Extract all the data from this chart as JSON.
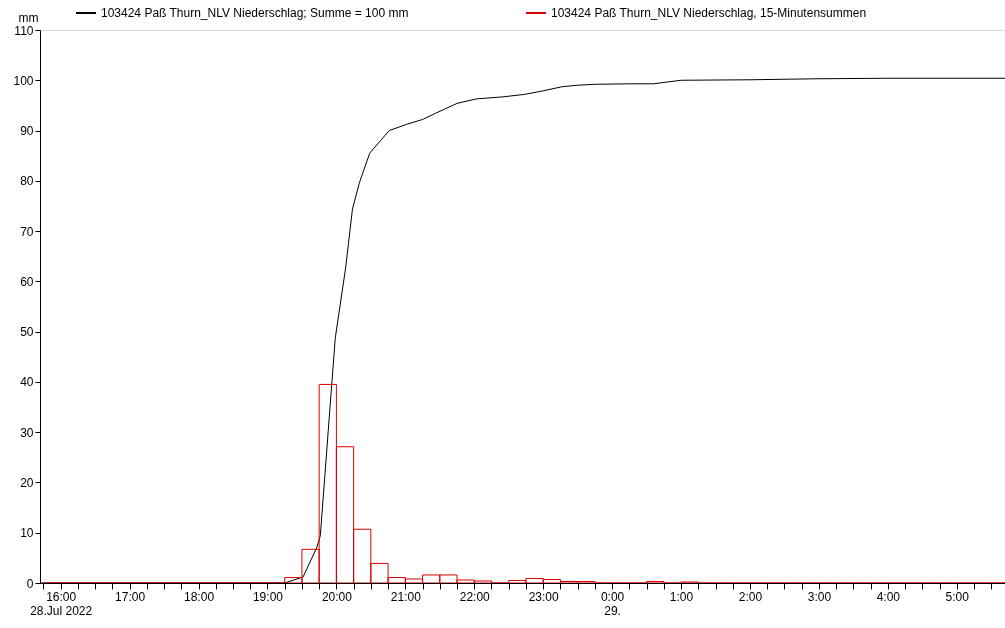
{
  "chart_data": {
    "type": "line",
    "ylabel": "mm",
    "legend": "top",
    "xlim": [
      "2022-07-28T15:42",
      "2022-07-29T05:42"
    ],
    "ylim": [
      0,
      110
    ],
    "yticks": [
      0,
      10,
      20,
      30,
      40,
      50,
      60,
      70,
      80,
      90,
      100,
      110
    ],
    "grid": false,
    "xticks": [
      {
        "value": "2022-07-28T15:45",
        "label": null
      },
      {
        "value": "2022-07-28T16:00",
        "label": "16:00\n28.Jul 2022"
      },
      {
        "value": "2022-07-28T16:15",
        "label": null
      },
      {
        "value": "2022-07-28T16:30",
        "label": null
      },
      {
        "value": "2022-07-28T16:45",
        "label": null
      },
      {
        "value": "2022-07-28T17:00",
        "label": "17:00"
      },
      {
        "value": "2022-07-28T17:15",
        "label": null
      },
      {
        "value": "2022-07-28T17:30",
        "label": null
      },
      {
        "value": "2022-07-28T17:45",
        "label": null
      },
      {
        "value": "2022-07-28T18:00",
        "label": "18:00"
      },
      {
        "value": "2022-07-28T18:15",
        "label": null
      },
      {
        "value": "2022-07-28T18:30",
        "label": null
      },
      {
        "value": "2022-07-28T18:45",
        "label": null
      },
      {
        "value": "2022-07-28T19:00",
        "label": "19:00"
      },
      {
        "value": "2022-07-28T19:15",
        "label": null
      },
      {
        "value": "2022-07-28T19:30",
        "label": null
      },
      {
        "value": "2022-07-28T19:45",
        "label": null
      },
      {
        "value": "2022-07-28T20:00",
        "label": "20:00"
      },
      {
        "value": "2022-07-28T20:15",
        "label": null
      },
      {
        "value": "2022-07-28T20:30",
        "label": null
      },
      {
        "value": "2022-07-28T20:45",
        "label": null
      },
      {
        "value": "2022-07-28T21:00",
        "label": "21:00"
      },
      {
        "value": "2022-07-28T21:15",
        "label": null
      },
      {
        "value": "2022-07-28T21:30",
        "label": null
      },
      {
        "value": "2022-07-28T21:45",
        "label": null
      },
      {
        "value": "2022-07-28T22:00",
        "label": "22:00"
      },
      {
        "value": "2022-07-28T22:15",
        "label": null
      },
      {
        "value": "2022-07-28T22:30",
        "label": null
      },
      {
        "value": "2022-07-28T22:45",
        "label": null
      },
      {
        "value": "2022-07-28T23:00",
        "label": "23:00"
      },
      {
        "value": "2022-07-28T23:15",
        "label": null
      },
      {
        "value": "2022-07-28T23:30",
        "label": null
      },
      {
        "value": "2022-07-28T23:45",
        "label": null
      },
      {
        "value": "2022-07-29T00:00",
        "label": "0:00\n29."
      },
      {
        "value": "2022-07-29T00:15",
        "label": null
      },
      {
        "value": "2022-07-29T00:30",
        "label": null
      },
      {
        "value": "2022-07-29T00:45",
        "label": null
      },
      {
        "value": "2022-07-29T01:00",
        "label": "1:00"
      },
      {
        "value": "2022-07-29T01:15",
        "label": null
      },
      {
        "value": "2022-07-29T01:30",
        "label": null
      },
      {
        "value": "2022-07-29T01:45",
        "label": null
      },
      {
        "value": "2022-07-29T02:00",
        "label": "2:00"
      },
      {
        "value": "2022-07-29T02:15",
        "label": null
      },
      {
        "value": "2022-07-29T02:30",
        "label": null
      },
      {
        "value": "2022-07-29T02:45",
        "label": null
      },
      {
        "value": "2022-07-29T03:00",
        "label": "3:00"
      },
      {
        "value": "2022-07-29T03:15",
        "label": null
      },
      {
        "value": "2022-07-29T03:30",
        "label": null
      },
      {
        "value": "2022-07-29T03:45",
        "label": null
      },
      {
        "value": "2022-07-29T04:00",
        "label": "4:00"
      },
      {
        "value": "2022-07-29T04:15",
        "label": null
      },
      {
        "value": "2022-07-29T04:30",
        "label": null
      },
      {
        "value": "2022-07-29T04:45",
        "label": null
      },
      {
        "value": "2022-07-29T05:00",
        "label": "5:00"
      },
      {
        "value": "2022-07-29T05:15",
        "label": null
      },
      {
        "value": "2022-07-29T05:30",
        "label": null
      }
    ],
    "series": [
      {
        "name": "103424 Paß Thurn_NLV  Niederschlag; Summe = 100 mm",
        "color": "#000000",
        "x": [
          "2022-07-28T15:42",
          "2022-07-28T19:15",
          "2022-07-28T19:31",
          "2022-07-28T19:43",
          "2022-07-28T19:46",
          "2022-07-28T19:59",
          "2022-07-28T20:08",
          "2022-07-28T20:14",
          "2022-07-28T20:20",
          "2022-07-28T20:29",
          "2022-07-28T20:46",
          "2022-07-28T21:02",
          "2022-07-28T21:15",
          "2022-07-28T21:26",
          "2022-07-28T21:45",
          "2022-07-28T22:02",
          "2022-07-28T22:25",
          "2022-07-28T22:44",
          "2022-07-28T23:00",
          "2022-07-28T23:16",
          "2022-07-28T23:29",
          "2022-07-28T23:45",
          "2022-07-29T00:16",
          "2022-07-29T00:36",
          "2022-07-29T01:00",
          "2022-07-29T02:00",
          "2022-07-29T03:00",
          "2022-07-29T04:00",
          "2022-07-29T05:42"
        ],
        "values": [
          0,
          0,
          1.2,
          7.1,
          9.4,
          48.7,
          62.6,
          74.4,
          79.6,
          85.5,
          90.0,
          91.3,
          92.2,
          93.4,
          95.4,
          96.3,
          96.7,
          97.2,
          97.9,
          98.7,
          99.0,
          99.2,
          99.3,
          99.3,
          100.0,
          100.1,
          100.3,
          100.4,
          100.4
        ]
      },
      {
        "name": "103424 Paß Thurn_NLV  Niederschlag, 15-Minutensummen",
        "type": "histogram",
        "color": "#d40000",
        "bins": [
          "2022-07-28T15:45",
          "2022-07-28T16:00",
          "2022-07-28T16:15",
          "2022-07-28T16:30",
          "2022-07-28T16:45",
          "2022-07-28T17:00",
          "2022-07-28T17:15",
          "2022-07-28T17:30",
          "2022-07-28T17:45",
          "2022-07-28T18:00",
          "2022-07-28T18:15",
          "2022-07-28T18:30",
          "2022-07-28T18:45",
          "2022-07-28T19:00",
          "2022-07-28T19:15",
          "2022-07-28T19:30",
          "2022-07-28T19:45",
          "2022-07-28T20:00",
          "2022-07-28T20:15",
          "2022-07-28T20:30",
          "2022-07-28T20:45",
          "2022-07-28T21:00",
          "2022-07-28T21:15",
          "2022-07-28T21:30",
          "2022-07-28T21:45",
          "2022-07-28T22:00",
          "2022-07-28T22:15",
          "2022-07-28T22:30",
          "2022-07-28T22:45",
          "2022-07-28T23:00",
          "2022-07-28T23:15",
          "2022-07-28T23:30",
          "2022-07-28T23:45",
          "2022-07-29T00:00",
          "2022-07-29T00:15",
          "2022-07-29T00:30",
          "2022-07-29T00:45",
          "2022-07-29T01:00",
          "2022-07-29T01:15",
          "2022-07-29T01:30",
          "2022-07-29T01:45",
          "2022-07-29T02:00",
          "2022-07-29T02:15",
          "2022-07-29T02:30",
          "2022-07-29T02:45",
          "2022-07-29T03:00",
          "2022-07-29T03:15",
          "2022-07-29T03:30",
          "2022-07-29T03:45",
          "2022-07-29T04:00",
          "2022-07-29T04:15",
          "2022-07-29T04:30",
          "2022-07-29T04:45",
          "2022-07-29T05:00",
          "2022-07-29T05:15",
          "2022-07-29T05:30",
          "2022-07-29T05:45"
        ],
        "values": [
          0,
          0,
          0,
          0,
          0,
          0,
          0,
          0,
          0,
          0,
          0,
          0,
          0,
          0,
          1.1,
          6.7,
          39.5,
          27.1,
          10.7,
          3.9,
          1.1,
          0.8,
          1.6,
          1.6,
          0.6,
          0.4,
          0,
          0.5,
          0.9,
          0.7,
          0.3,
          0.3,
          0,
          0,
          0,
          0.3,
          0,
          0.2,
          0,
          0,
          0,
          0,
          0,
          0,
          0,
          0,
          0,
          0,
          0,
          0,
          0,
          0,
          0,
          0,
          0,
          0
        ]
      }
    ]
  }
}
